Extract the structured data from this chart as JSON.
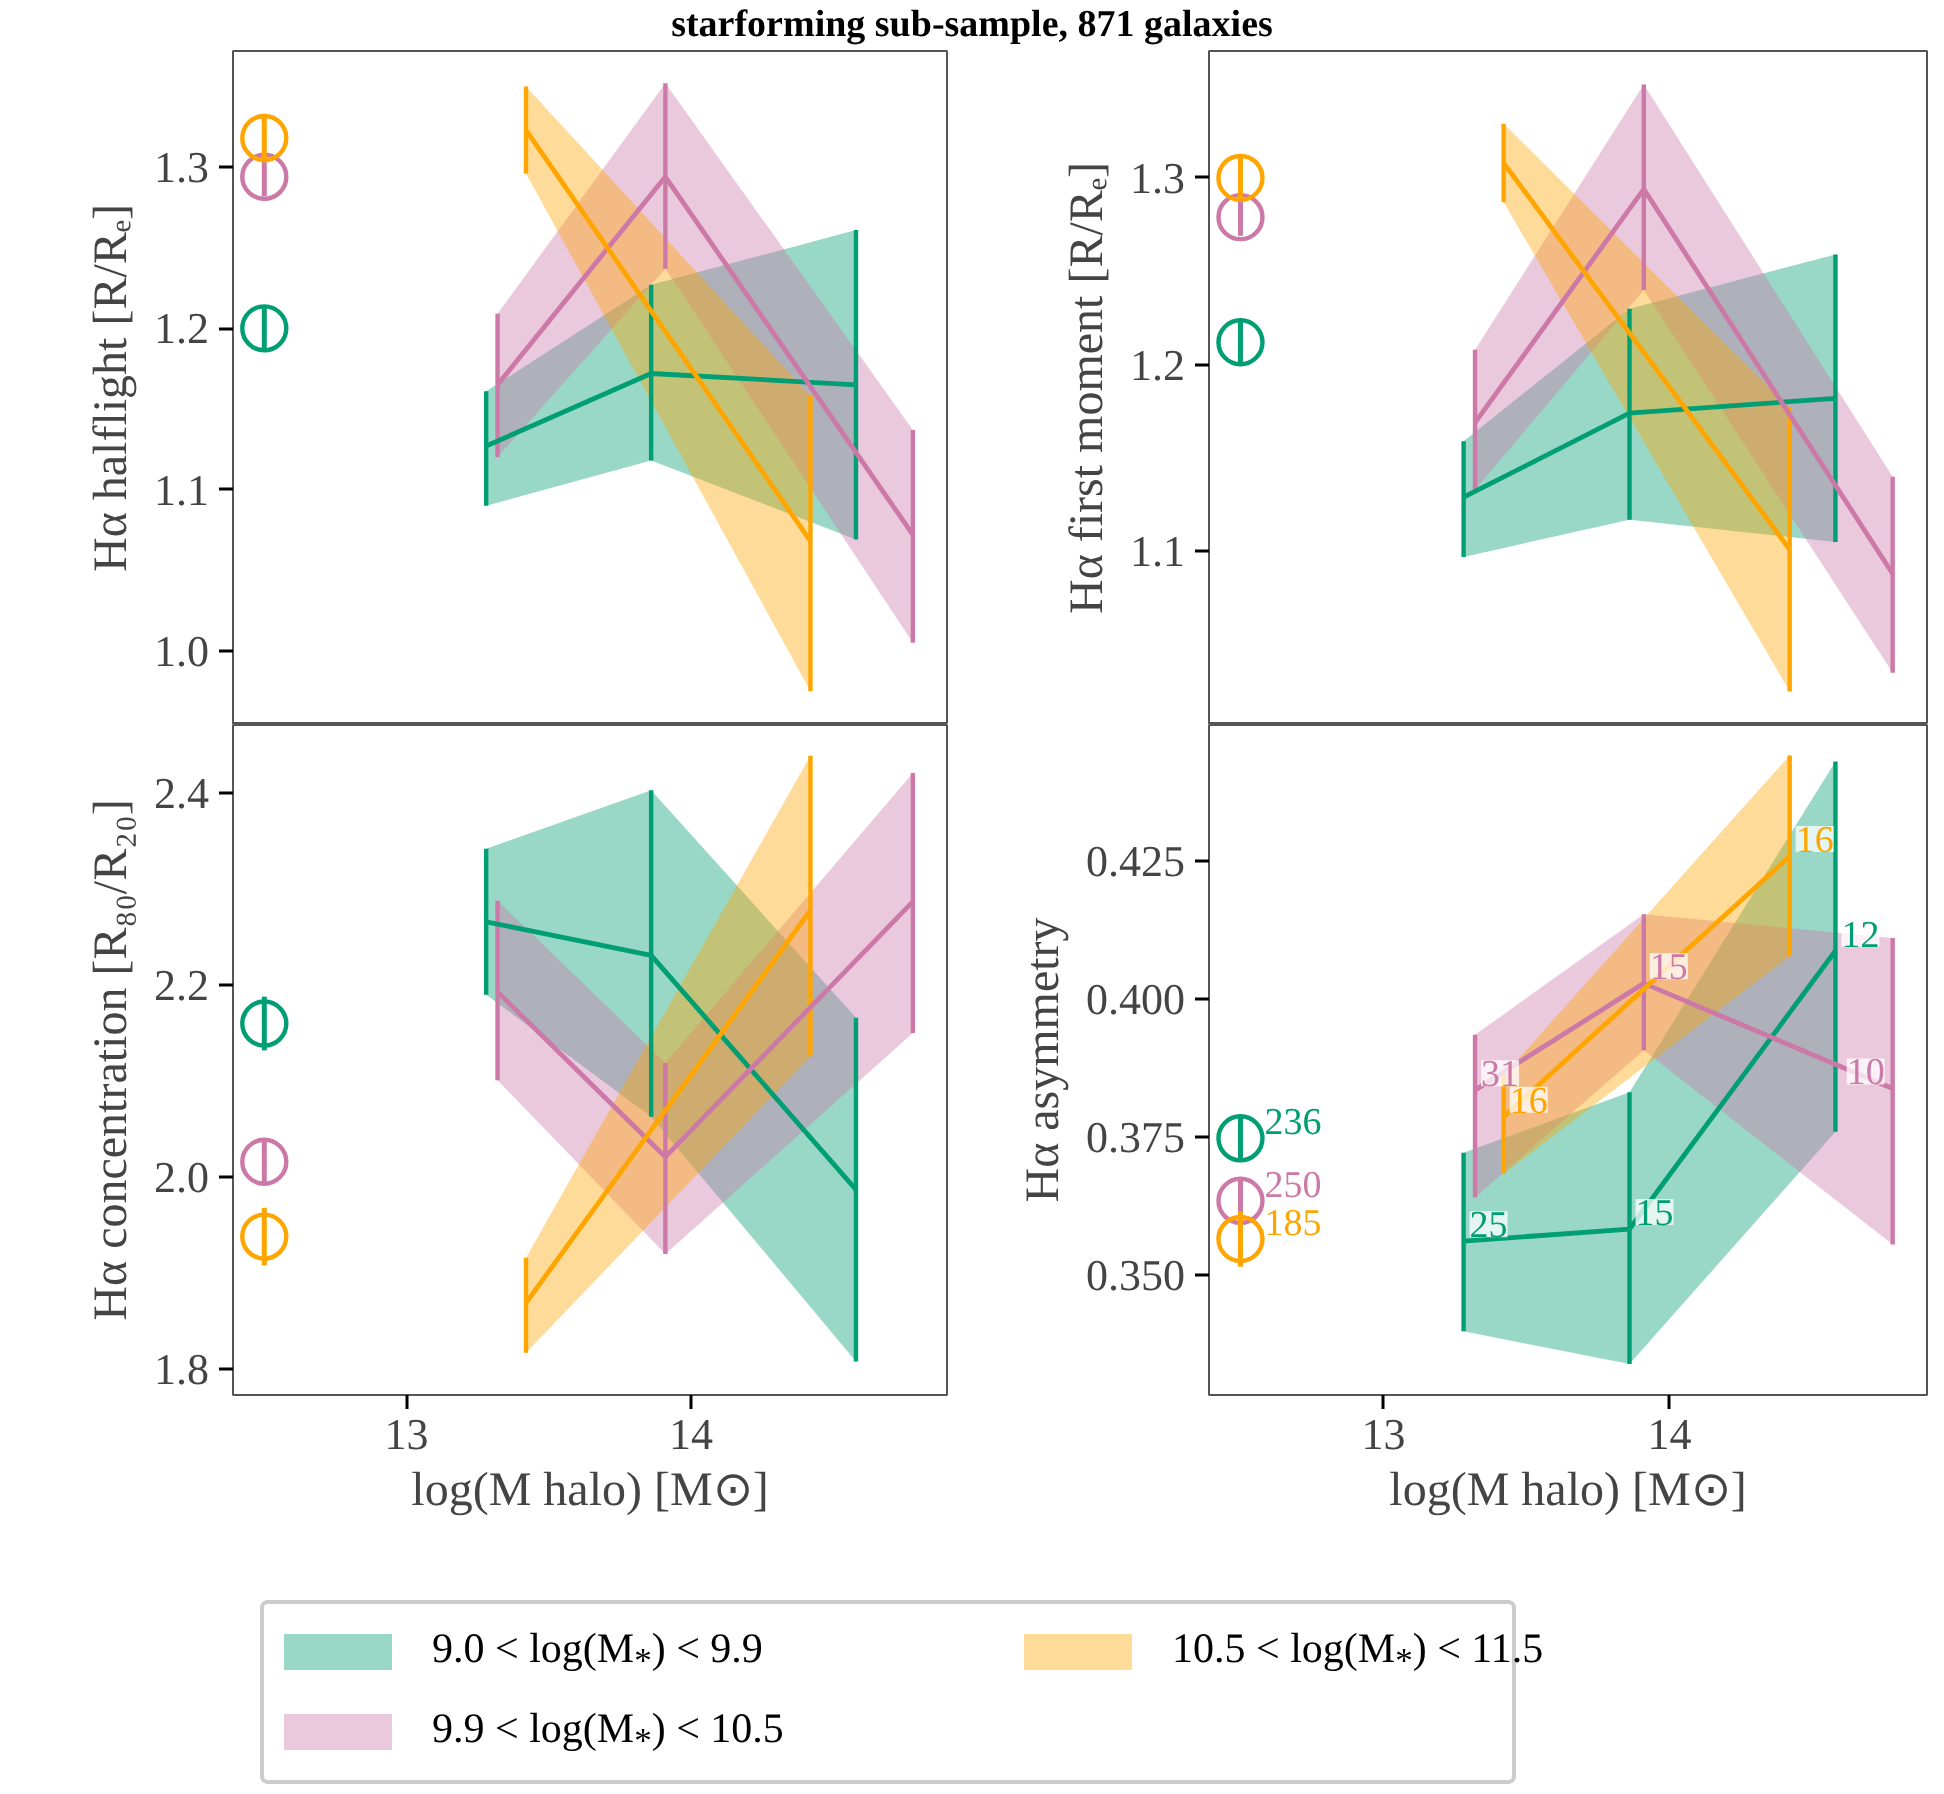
{
  "chart_data": [
    {
      "type": "line",
      "title": "starforming sub-sample, 871 galaxies",
      "ylabel": "Hα halflight [R/Rₑ]",
      "xlim": [
        12.39,
        14.9
      ],
      "ylim": [
        0.954,
        1.372
      ],
      "yticks": [
        {
          "value": 1.0,
          "label": "1.0"
        },
        1.1,
        1.2,
        1.3
      ],
      "tick_labels": "y",
      "legend": "bottom",
      "series": [
        {
          "name": "9.0 < log(M$_{*}$) < 9.9",
          "color": "#009e73",
          "x": [
            13.28,
            13.86,
            14.58
          ],
          "values": [
            1.127,
            1.172,
            1.165
          ],
          "lower": [
            1.09,
            1.118,
            1.069
          ],
          "upper": [
            1.161,
            1.227,
            1.261
          ],
          "errors": [
            [
              1.09,
              1.161
            ],
            [
              1.118,
              1.227
            ],
            [
              1.069,
              1.261
            ]
          ]
        },
        {
          "name": "9.9 < log(M$_{*}$) < 10.5",
          "color": "#cc79a7",
          "x": [
            13.32,
            13.91,
            14.78
          ],
          "values": [
            1.165,
            1.294,
            1.072
          ],
          "lower": [
            1.12,
            1.237,
            1.005
          ],
          "upper": [
            1.209,
            1.352,
            1.137
          ],
          "errors": [
            [
              1.12,
              1.209
            ],
            [
              1.237,
              1.352
            ],
            [
              1.005,
              1.137
            ]
          ]
        },
        {
          "name": "10.5 < log(M$_{*}$) < 11.5",
          "color": "#ffa500",
          "x": [
            13.42,
            14.42
          ],
          "values": [
            1.323,
            1.068
          ],
          "lower": [
            1.296,
            0.975
          ],
          "upper": [
            1.35,
            1.158
          ],
          "errors": [
            [
              1.296,
              1.35
            ],
            [
              0.975,
              1.158
            ]
          ]
        },
        {
          "type": "scatter",
          "marker": "circle",
          "color": "#009e73",
          "x": [
            12.5
          ],
          "values": [
            1.2
          ],
          "errors": [
            0.013
          ]
        },
        {
          "type": "scatter",
          "marker": "circle",
          "color": "#cc79a7",
          "x": [
            12.5
          ],
          "values": [
            1.294
          ],
          "errors": [
            0.012
          ]
        },
        {
          "type": "scatter",
          "marker": "circle",
          "color": "#ffa500",
          "x": [
            12.5
          ],
          "values": [
            1.318
          ],
          "errors": [
            0.015
          ]
        }
      ]
    },
    {
      "type": "line",
      "ylabel": "Hα first moment [R/Rₑ]",
      "xlim": [
        12.39,
        14.9
      ],
      "ylim": [
        1.007,
        1.368
      ],
      "yticks": [
        1.1,
        1.2,
        1.3
      ],
      "tick_labels": "y",
      "series": [
        {
          "color": "#009e73",
          "x": [
            13.28,
            13.86,
            14.58
          ],
          "values": [
            1.129,
            1.174,
            1.182
          ],
          "lower": [
            1.097,
            1.117,
            1.105
          ],
          "upper": [
            1.159,
            1.23,
            1.259
          ],
          "errors": [
            [
              1.097,
              1.159
            ],
            [
              1.117,
              1.23
            ],
            [
              1.105,
              1.259
            ]
          ]
        },
        {
          "color": "#cc79a7",
          "x": [
            13.32,
            13.91,
            14.78
          ],
          "values": [
            1.169,
            1.294,
            1.088
          ],
          "lower": [
            1.133,
            1.24,
            1.035
          ],
          "upper": [
            1.208,
            1.35,
            1.14
          ],
          "errors": [
            [
              1.133,
              1.208
            ],
            [
              1.24,
              1.35
            ],
            [
              1.035,
              1.14
            ]
          ]
        },
        {
          "color": "#ffa500",
          "x": [
            13.42,
            14.42
          ],
          "values": [
            1.308,
            1.101
          ],
          "lower": [
            1.287,
            1.025
          ],
          "upper": [
            1.329,
            1.177
          ],
          "errors": [
            [
              1.287,
              1.329
            ],
            [
              1.025,
              1.177
            ]
          ]
        },
        {
          "type": "scatter",
          "marker": "circle",
          "color": "#009e73",
          "x": [
            12.5
          ],
          "values": [
            1.212
          ],
          "errors": [
            0.012
          ]
        },
        {
          "type": "scatter",
          "marker": "circle",
          "color": "#cc79a7",
          "x": [
            12.5
          ],
          "values": [
            1.279
          ],
          "errors": [
            0.01
          ]
        },
        {
          "type": "scatter",
          "marker": "circle",
          "color": "#ffa500",
          "x": [
            12.5
          ],
          "values": [
            1.3
          ],
          "errors": [
            0.012
          ]
        }
      ]
    },
    {
      "type": "line",
      "ylabel": "Hα concentration [R₈₀/R₂₀]",
      "xlabel": "log(M halo) [M⊙]",
      "xlim": [
        12.39,
        14.9
      ],
      "xticks": [
        13,
        14
      ],
      "ylim": [
        1.773,
        2.471
      ],
      "yticks": [
        1.8,
        {
          "value": 2.0,
          "label": "2.0"
        },
        2.2,
        2.4
      ],
      "series": [
        {
          "color": "#009e73",
          "x": [
            13.28,
            13.86,
            14.58
          ],
          "values": [
            2.266,
            2.231,
            1.987
          ],
          "lower": [
            2.19,
            2.063,
            1.808
          ],
          "upper": [
            2.342,
            2.403,
            2.166
          ],
          "errors": [
            [
              2.19,
              2.342
            ],
            [
              2.063,
              2.403
            ],
            [
              1.808,
              2.166
            ]
          ]
        },
        {
          "color": "#cc79a7",
          "x": [
            13.32,
            13.91,
            14.78
          ],
          "values": [
            2.193,
            2.021,
            2.287
          ],
          "lower": [
            2.101,
            1.92,
            2.15
          ],
          "upper": [
            2.288,
            2.119,
            2.421
          ],
          "errors": [
            [
              2.101,
              2.288
            ],
            [
              1.92,
              2.119
            ],
            [
              2.15,
              2.421
            ]
          ]
        },
        {
          "color": "#ffa500",
          "x": [
            13.42,
            14.42
          ],
          "values": [
            1.869,
            2.278
          ],
          "lower": [
            1.817,
            2.126
          ],
          "upper": [
            1.916,
            2.439
          ],
          "errors": [
            [
              1.817,
              1.916
            ],
            [
              2.126,
              2.439
            ]
          ]
        },
        {
          "type": "scatter",
          "marker": "circle",
          "color": "#009e73",
          "x": [
            12.5
          ],
          "values": [
            2.16
          ],
          "errors": [
            0.028
          ]
        },
        {
          "type": "scatter",
          "marker": "circle",
          "color": "#cc79a7",
          "x": [
            12.5
          ],
          "values": [
            2.016
          ],
          "errors": [
            0.023
          ]
        },
        {
          "type": "scatter",
          "marker": "circle",
          "color": "#ffa500",
          "x": [
            12.5
          ],
          "values": [
            1.938
          ],
          "errors": [
            0.03
          ]
        }
      ]
    },
    {
      "type": "line",
      "ylabel": "Hα asymmetry",
      "xlabel": "log(M halo) [M⊙]",
      "xlim": [
        12.39,
        14.9
      ],
      "xticks": [
        13,
        14
      ],
      "ylim": [
        0.3284,
        0.4495
      ],
      "yticks": [
        {
          "value": 0.35,
          "label": "0.350"
        },
        0.375,
        {
          "value": 0.4,
          "label": "0.400"
        },
        0.425
      ],
      "series": [
        {
          "color": "#009e73",
          "x": [
            13.28,
            13.86,
            14.58
          ],
          "values": [
            0.3562,
            0.3584,
            0.4087
          ],
          "lower": [
            0.3399,
            0.334,
            0.376
          ],
          "upper": [
            0.3722,
            0.3831,
            0.4429
          ],
          "errors": [
            [
              0.3399,
              0.3722
            ],
            [
              0.334,
              0.3831
            ],
            [
              0.376,
              0.4429
            ]
          ]
        },
        {
          "color": "#cc79a7",
          "x": [
            13.32,
            13.91,
            14.78
          ],
          "values": [
            0.3835,
            0.4028,
            0.3838
          ],
          "lower": [
            0.3641,
            0.3907,
            0.3556
          ],
          "upper": [
            0.3935,
            0.4153,
            0.411
          ],
          "errors": [
            [
              0.3641,
              0.3935
            ],
            [
              0.3907,
              0.4153
            ],
            [
              0.3556,
              0.411
            ]
          ]
        },
        {
          "color": "#ffa500",
          "x": [
            13.42,
            14.42
          ],
          "values": [
            0.3787,
            0.4258
          ],
          "lower": [
            0.3684,
            0.4077
          ],
          "upper": [
            0.3862,
            0.444
          ],
          "errors": [
            [
              0.3684,
              0.3862
            ],
            [
              0.4077,
              0.444
            ]
          ]
        },
        {
          "type": "scatter",
          "marker": "circle",
          "color": "#009e73",
          "x": [
            12.5
          ],
          "values": [
            0.3748
          ],
          "errors": [
            0.0042
          ]
        },
        {
          "type": "scatter",
          "marker": "circle",
          "color": "#cc79a7",
          "x": [
            12.5
          ],
          "values": [
            0.3635
          ],
          "errors": [
            0.004
          ]
        },
        {
          "type": "scatter",
          "marker": "circle",
          "color": "#ffa500",
          "x": [
            12.5
          ],
          "values": [
            0.3566
          ],
          "errors": [
            0.005
          ]
        }
      ],
      "annotations": [
        {
          "text": "25",
          "x": 13.28,
          "y": 0.3562
        },
        {
          "text": "15",
          "x": 13.86,
          "y": 0.3584
        },
        {
          "text": "12",
          "x": 14.58,
          "y": 0.4087
        },
        {
          "text": "31",
          "x": 13.32,
          "y": 0.3835
        },
        {
          "text": "15",
          "x": 13.91,
          "y": 0.4028
        },
        {
          "text": "10",
          "x": 14.78,
          "y": 0.3838
        },
        {
          "text": "16",
          "x": 13.42,
          "y": 0.3787
        },
        {
          "text": "16",
          "x": 14.42,
          "y": 0.4258
        },
        {
          "text": "236",
          "x": 12.5,
          "y": 0.3748
        },
        {
          "text": "250",
          "x": 12.5,
          "y": 0.3635
        },
        {
          "text": "185",
          "x": 12.5,
          "y": 0.3566
        }
      ]
    }
  ]
}
